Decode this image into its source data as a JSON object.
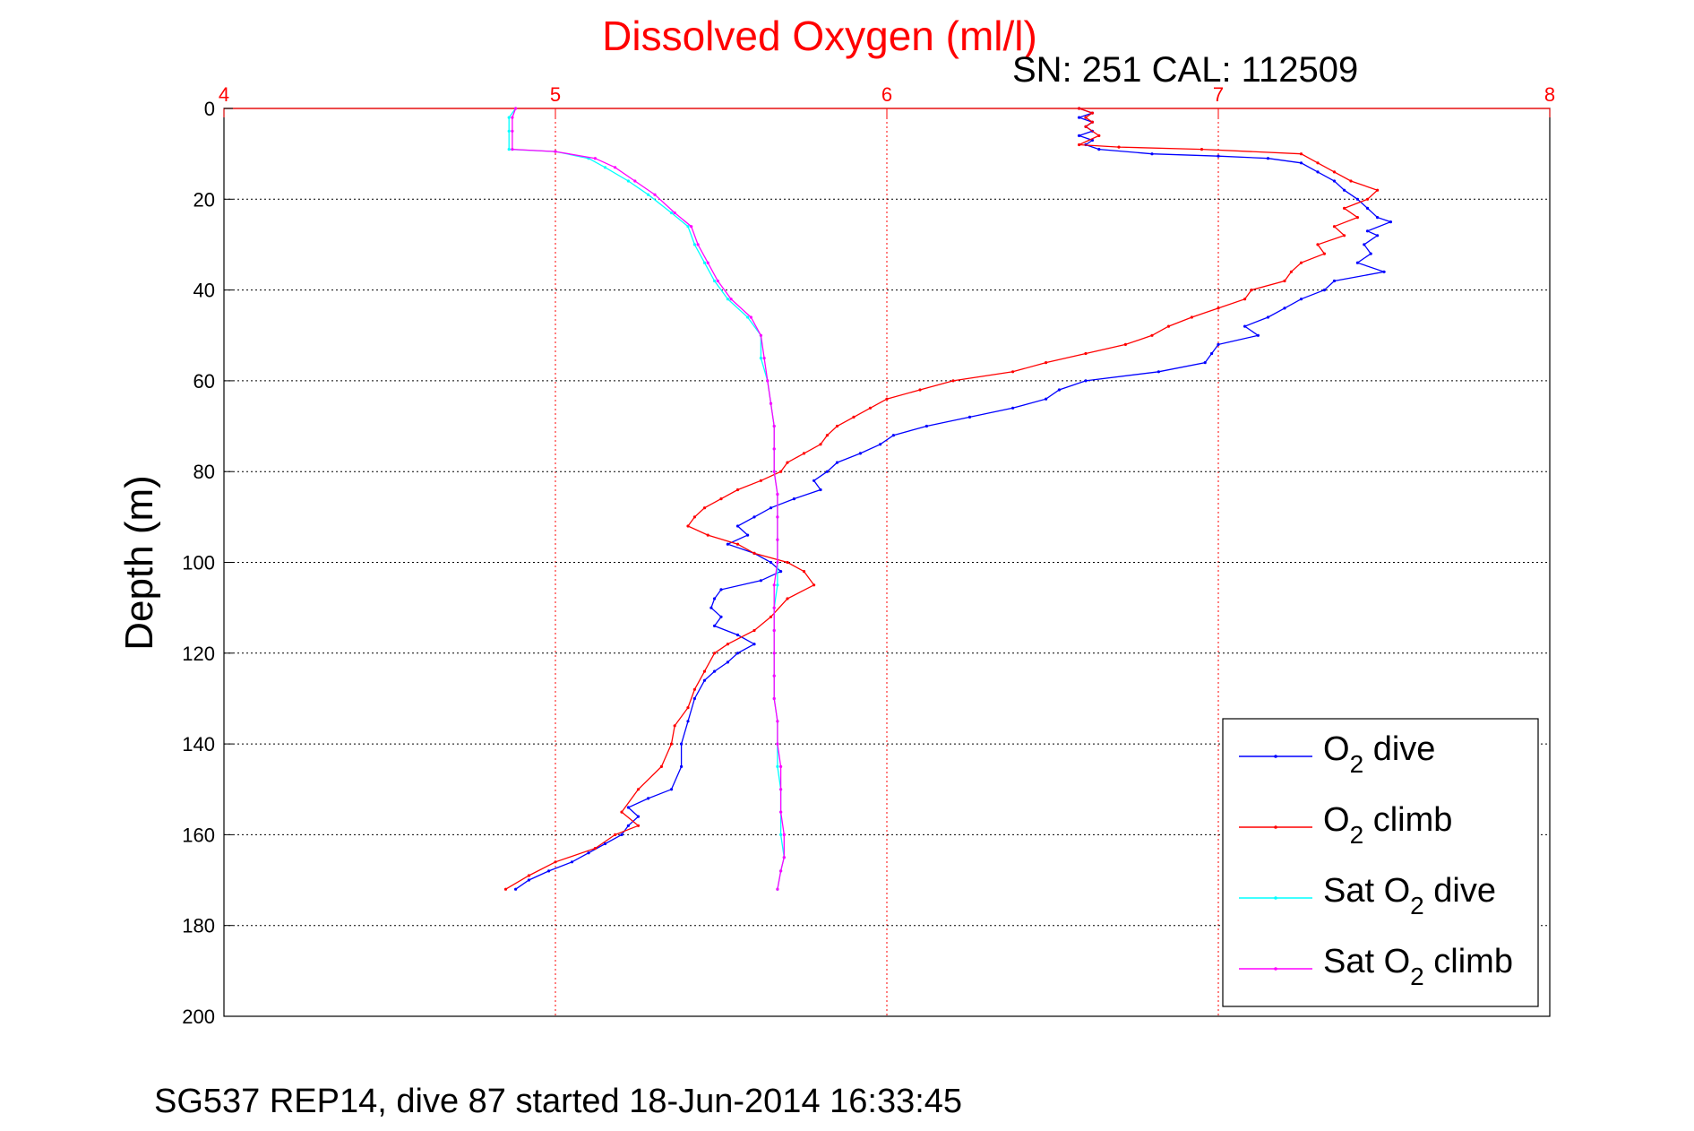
{
  "chart_data": {
    "type": "line",
    "title": "Dissolved Oxygen (ml/l)",
    "subtitle": "SN: 251  CAL: 112509",
    "ylabel": "Depth (m)",
    "footer": "SG537 REP14, dive 87 started 18-Jun-2014 16:33:45",
    "xlim": [
      4,
      8
    ],
    "ylim": [
      0,
      200
    ],
    "y_reversed": true,
    "x_axis_position": "top",
    "xticks": [
      4,
      5,
      6,
      7,
      8
    ],
    "yticks": [
      0,
      20,
      40,
      60,
      80,
      100,
      120,
      140,
      160,
      180,
      200
    ],
    "grid": true,
    "legend_position": "lower-right",
    "series": [
      {
        "name_main": "O",
        "name_sub": "2",
        "name_rest": " dive",
        "color": "#0000ff",
        "points": [
          [
            6.58,
            0
          ],
          [
            6.62,
            1
          ],
          [
            6.58,
            2
          ],
          [
            6.62,
            3
          ],
          [
            6.6,
            4
          ],
          [
            6.62,
            5
          ],
          [
            6.58,
            6
          ],
          [
            6.62,
            7
          ],
          [
            6.6,
            8
          ],
          [
            6.64,
            9
          ],
          [
            6.8,
            10
          ],
          [
            7.0,
            10.5
          ],
          [
            7.15,
            11
          ],
          [
            7.25,
            12
          ],
          [
            7.3,
            14
          ],
          [
            7.35,
            16
          ],
          [
            7.38,
            18
          ],
          [
            7.42,
            20
          ],
          [
            7.45,
            22
          ],
          [
            7.48,
            24
          ],
          [
            7.52,
            25
          ],
          [
            7.45,
            27
          ],
          [
            7.48,
            28
          ],
          [
            7.44,
            30
          ],
          [
            7.46,
            32
          ],
          [
            7.42,
            34
          ],
          [
            7.5,
            36
          ],
          [
            7.35,
            38
          ],
          [
            7.32,
            40
          ],
          [
            7.25,
            42
          ],
          [
            7.2,
            44
          ],
          [
            7.15,
            46
          ],
          [
            7.08,
            48
          ],
          [
            7.12,
            50
          ],
          [
            7.0,
            52
          ],
          [
            6.98,
            54
          ],
          [
            6.96,
            56
          ],
          [
            6.82,
            58
          ],
          [
            6.6,
            60
          ],
          [
            6.52,
            62
          ],
          [
            6.48,
            64
          ],
          [
            6.38,
            66
          ],
          [
            6.25,
            68
          ],
          [
            6.12,
            70
          ],
          [
            6.02,
            72
          ],
          [
            5.98,
            74
          ],
          [
            5.92,
            76
          ],
          [
            5.85,
            78
          ],
          [
            5.82,
            80
          ],
          [
            5.78,
            82
          ],
          [
            5.8,
            84
          ],
          [
            5.72,
            86
          ],
          [
            5.65,
            88
          ],
          [
            5.6,
            90
          ],
          [
            5.55,
            92
          ],
          [
            5.58,
            94
          ],
          [
            5.52,
            96
          ],
          [
            5.6,
            98
          ],
          [
            5.65,
            100
          ],
          [
            5.68,
            102
          ],
          [
            5.62,
            104
          ],
          [
            5.5,
            106
          ],
          [
            5.48,
            108
          ],
          [
            5.47,
            110
          ],
          [
            5.5,
            112
          ],
          [
            5.48,
            114
          ],
          [
            5.55,
            116
          ],
          [
            5.6,
            118
          ],
          [
            5.55,
            120
          ],
          [
            5.52,
            122
          ],
          [
            5.48,
            124
          ],
          [
            5.45,
            126
          ],
          [
            5.42,
            130
          ],
          [
            5.4,
            135
          ],
          [
            5.38,
            140
          ],
          [
            5.38,
            145
          ],
          [
            5.35,
            150
          ],
          [
            5.28,
            152
          ],
          [
            5.22,
            154
          ],
          [
            5.25,
            156
          ],
          [
            5.22,
            158
          ],
          [
            5.2,
            160
          ],
          [
            5.15,
            162
          ],
          [
            5.1,
            164
          ],
          [
            5.05,
            166
          ],
          [
            4.98,
            168
          ],
          [
            4.92,
            170
          ],
          [
            4.88,
            172
          ]
        ]
      },
      {
        "name_main": "O",
        "name_sub": "2",
        "name_rest": " climb",
        "color": "#ff0000",
        "points": [
          [
            6.58,
            0
          ],
          [
            6.62,
            1
          ],
          [
            6.6,
            2
          ],
          [
            6.62,
            3
          ],
          [
            6.6,
            4
          ],
          [
            6.64,
            6
          ],
          [
            6.58,
            8
          ],
          [
            6.7,
            8.5
          ],
          [
            6.95,
            9
          ],
          [
            7.25,
            10
          ],
          [
            7.3,
            12
          ],
          [
            7.35,
            14
          ],
          [
            7.4,
            16
          ],
          [
            7.48,
            18
          ],
          [
            7.45,
            20
          ],
          [
            7.38,
            22
          ],
          [
            7.42,
            24
          ],
          [
            7.35,
            26
          ],
          [
            7.38,
            28
          ],
          [
            7.3,
            30
          ],
          [
            7.32,
            32
          ],
          [
            7.25,
            34
          ],
          [
            7.22,
            36
          ],
          [
            7.2,
            38
          ],
          [
            7.1,
            40
          ],
          [
            7.08,
            42
          ],
          [
            7.0,
            44
          ],
          [
            6.92,
            46
          ],
          [
            6.85,
            48
          ],
          [
            6.8,
            50
          ],
          [
            6.72,
            52
          ],
          [
            6.6,
            54
          ],
          [
            6.48,
            56
          ],
          [
            6.38,
            58
          ],
          [
            6.2,
            60
          ],
          [
            6.1,
            62
          ],
          [
            6.0,
            64
          ],
          [
            5.95,
            66
          ],
          [
            5.9,
            68
          ],
          [
            5.85,
            70
          ],
          [
            5.82,
            72
          ],
          [
            5.8,
            74
          ],
          [
            5.75,
            76
          ],
          [
            5.7,
            78
          ],
          [
            5.68,
            80
          ],
          [
            5.62,
            82
          ],
          [
            5.55,
            84
          ],
          [
            5.5,
            86
          ],
          [
            5.45,
            88
          ],
          [
            5.42,
            90
          ],
          [
            5.4,
            92
          ],
          [
            5.46,
            94
          ],
          [
            5.55,
            96
          ],
          [
            5.6,
            98
          ],
          [
            5.7,
            100
          ],
          [
            5.75,
            102
          ],
          [
            5.78,
            105
          ],
          [
            5.7,
            108
          ],
          [
            5.65,
            112
          ],
          [
            5.6,
            115
          ],
          [
            5.52,
            118
          ],
          [
            5.48,
            120
          ],
          [
            5.45,
            124
          ],
          [
            5.42,
            128
          ],
          [
            5.4,
            132
          ],
          [
            5.36,
            136
          ],
          [
            5.35,
            140
          ],
          [
            5.32,
            145
          ],
          [
            5.25,
            150
          ],
          [
            5.2,
            155
          ],
          [
            5.25,
            158
          ],
          [
            5.18,
            160
          ],
          [
            5.12,
            163
          ],
          [
            5.0,
            166
          ],
          [
            4.92,
            169
          ],
          [
            4.85,
            172
          ]
        ]
      },
      {
        "name_main": "Sat O",
        "name_sub": "2",
        "name_rest": " dive",
        "color": "#00ffff",
        "points": [
          [
            4.88,
            0
          ],
          [
            4.86,
            2
          ],
          [
            4.86,
            5
          ],
          [
            4.86,
            9
          ],
          [
            5.0,
            9.5
          ],
          [
            5.1,
            11
          ],
          [
            5.15,
            13
          ],
          [
            5.22,
            16
          ],
          [
            5.28,
            19
          ],
          [
            5.35,
            23
          ],
          [
            5.4,
            26
          ],
          [
            5.42,
            30
          ],
          [
            5.45,
            34
          ],
          [
            5.48,
            38
          ],
          [
            5.52,
            42
          ],
          [
            5.58,
            46
          ],
          [
            5.62,
            50
          ],
          [
            5.62,
            55
          ],
          [
            5.64,
            60
          ],
          [
            5.65,
            65
          ],
          [
            5.66,
            70
          ],
          [
            5.66,
            75
          ],
          [
            5.66,
            80
          ],
          [
            5.67,
            85
          ],
          [
            5.67,
            90
          ],
          [
            5.67,
            95
          ],
          [
            5.67,
            100
          ],
          [
            5.67,
            105
          ],
          [
            5.66,
            110
          ],
          [
            5.66,
            115
          ],
          [
            5.66,
            120
          ],
          [
            5.66,
            125
          ],
          [
            5.66,
            130
          ],
          [
            5.67,
            135
          ],
          [
            5.67,
            140
          ],
          [
            5.67,
            145
          ],
          [
            5.68,
            150
          ],
          [
            5.68,
            155
          ],
          [
            5.68,
            160
          ],
          [
            5.69,
            165
          ],
          [
            5.68,
            168
          ],
          [
            5.67,
            172
          ]
        ]
      },
      {
        "name_main": "Sat O",
        "name_sub": "2",
        "name_rest": " climb",
        "color": "#ff00ff",
        "points": [
          [
            4.88,
            0
          ],
          [
            4.87,
            2
          ],
          [
            4.87,
            5
          ],
          [
            4.87,
            9
          ],
          [
            5.0,
            9.5
          ],
          [
            5.12,
            11
          ],
          [
            5.18,
            13
          ],
          [
            5.24,
            16
          ],
          [
            5.3,
            19
          ],
          [
            5.36,
            23
          ],
          [
            5.41,
            26
          ],
          [
            5.43,
            30
          ],
          [
            5.46,
            34
          ],
          [
            5.49,
            38
          ],
          [
            5.53,
            42
          ],
          [
            5.59,
            46
          ],
          [
            5.62,
            50
          ],
          [
            5.63,
            55
          ],
          [
            5.64,
            60
          ],
          [
            5.65,
            65
          ],
          [
            5.66,
            70
          ],
          [
            5.66,
            75
          ],
          [
            5.66,
            80
          ],
          [
            5.67,
            85
          ],
          [
            5.67,
            90
          ],
          [
            5.67,
            95
          ],
          [
            5.67,
            100
          ],
          [
            5.66,
            105
          ],
          [
            5.66,
            110
          ],
          [
            5.66,
            115
          ],
          [
            5.66,
            120
          ],
          [
            5.66,
            125
          ],
          [
            5.66,
            130
          ],
          [
            5.67,
            135
          ],
          [
            5.67,
            140
          ],
          [
            5.68,
            145
          ],
          [
            5.68,
            150
          ],
          [
            5.68,
            155
          ],
          [
            5.69,
            160
          ],
          [
            5.69,
            165
          ],
          [
            5.68,
            168
          ],
          [
            5.67,
            172
          ]
        ]
      }
    ]
  }
}
